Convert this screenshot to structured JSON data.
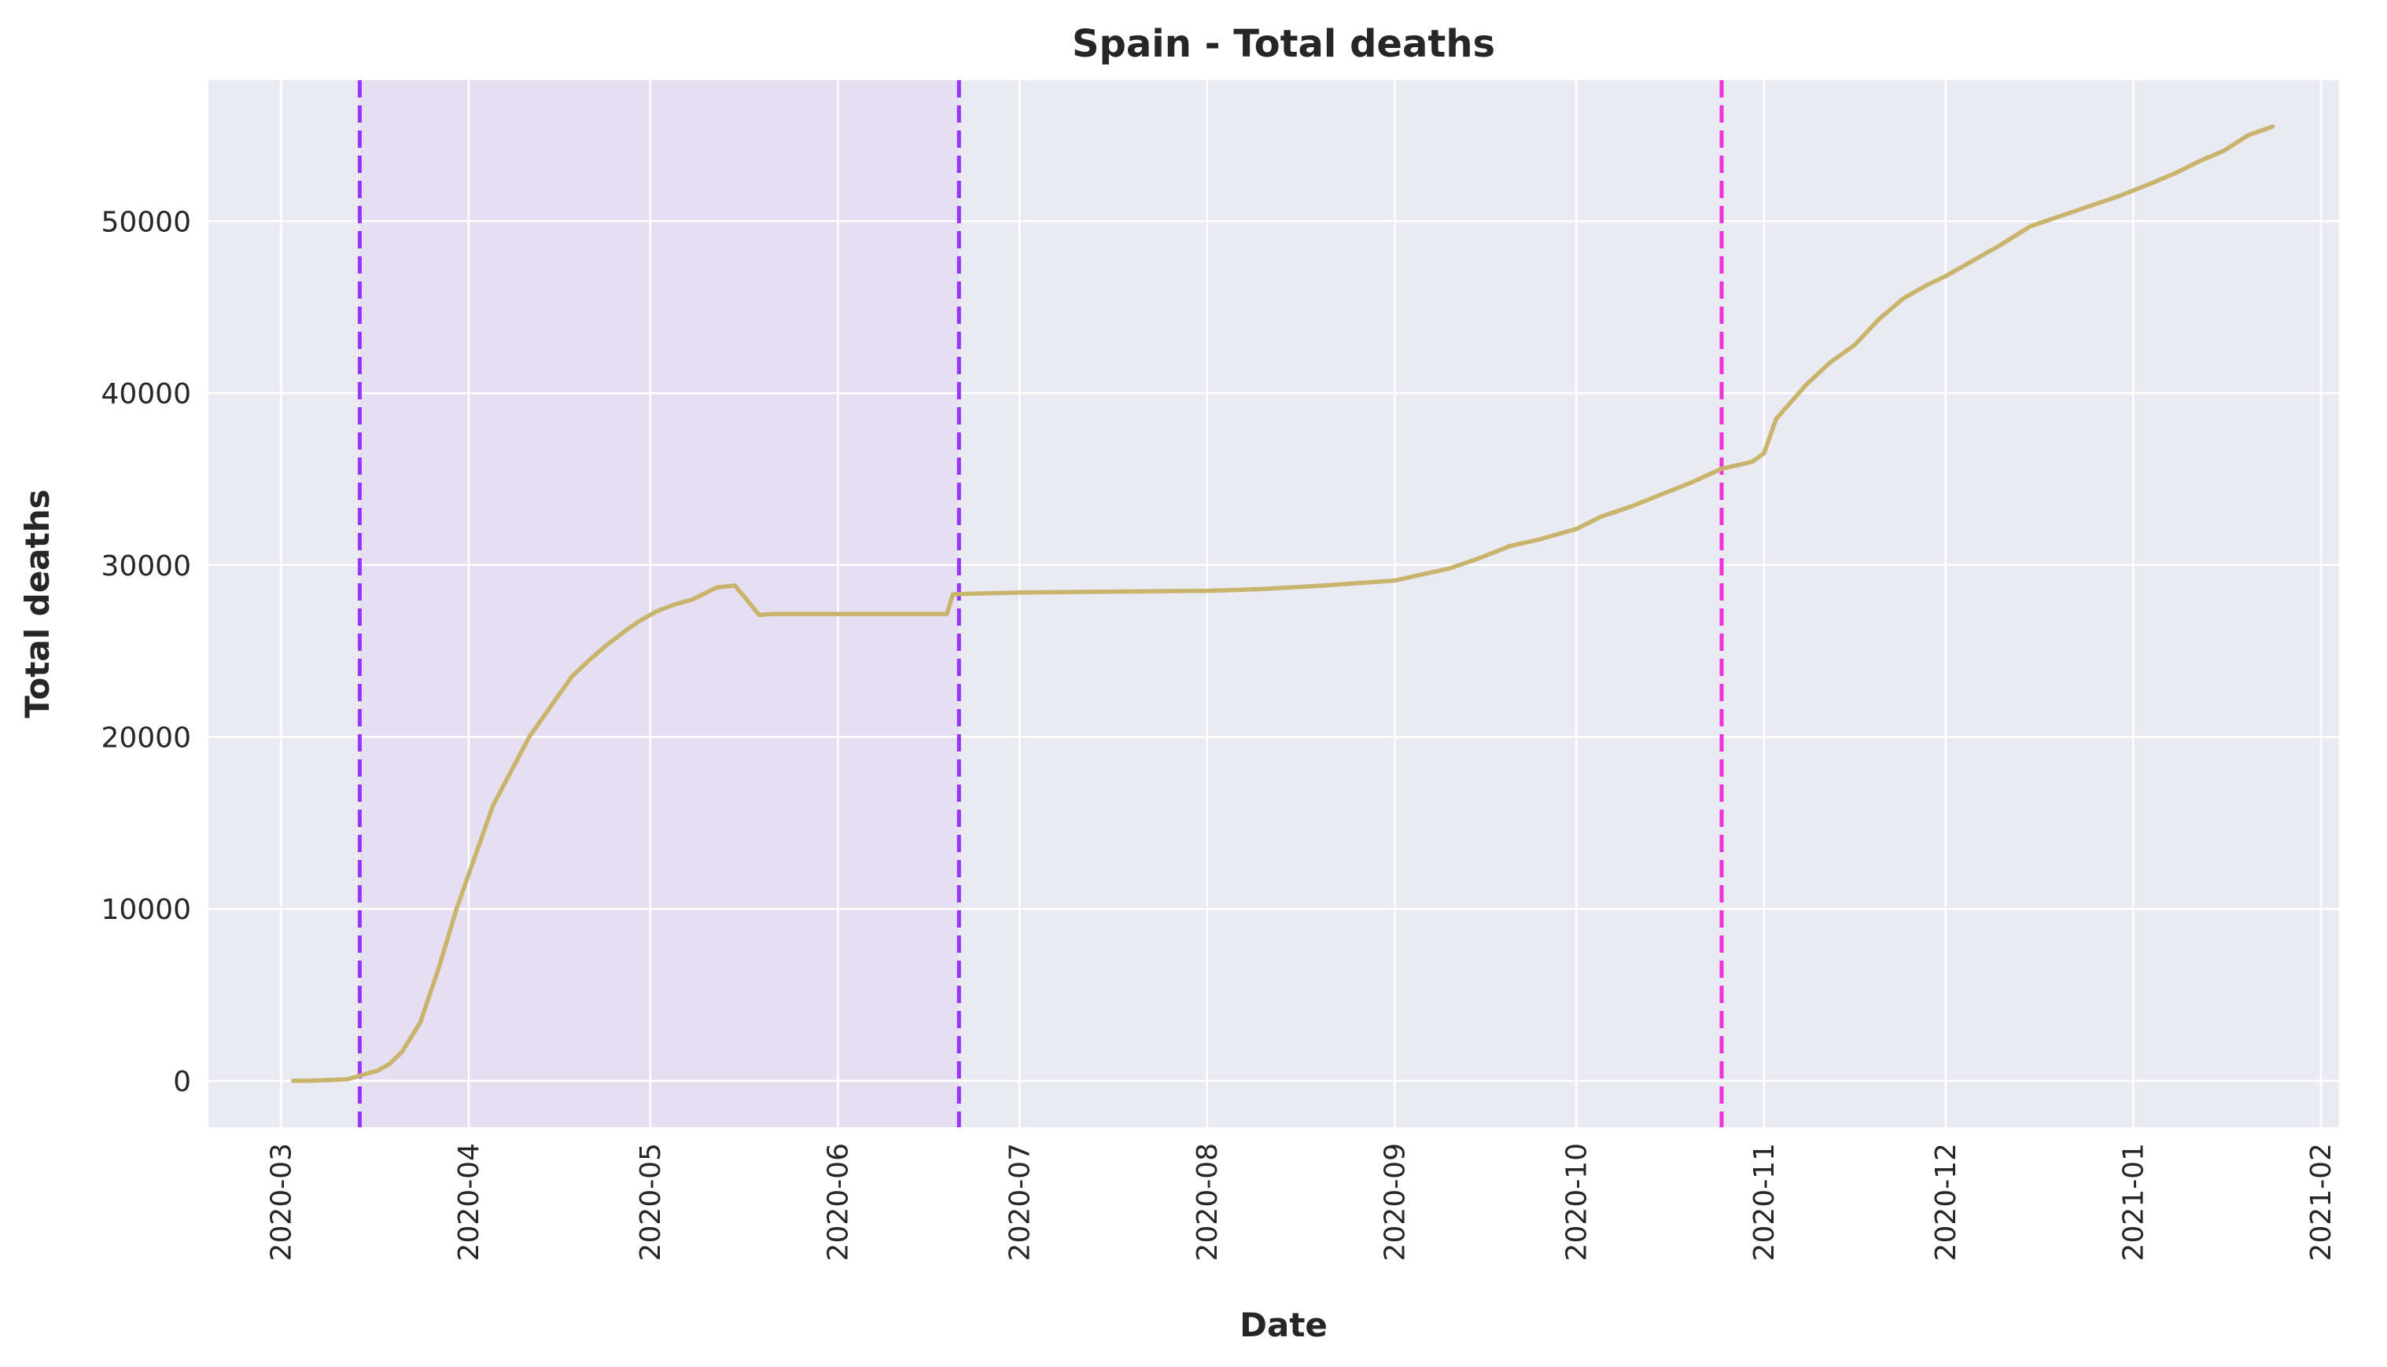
{
  "chart_data": {
    "type": "line",
    "title": "Spain - Total deaths",
    "xlabel": "Date",
    "ylabel": "Total deaths",
    "xlim": [
      "2020-02-18",
      "2021-02-04"
    ],
    "ylim": [
      -2700,
      58200
    ],
    "grid": true,
    "colors": {
      "background": "#eaeaf2",
      "grid": "#ffffff",
      "line": "#c9b46d",
      "shade": "#e5dff1",
      "vline_primary": "#9933ff",
      "vline_secondary": "#ee33dd",
      "text": "#262626"
    },
    "x_ticks": [
      "2020-03",
      "2020-04",
      "2020-05",
      "2020-06",
      "2020-07",
      "2020-08",
      "2020-09",
      "2020-10",
      "2020-11",
      "2020-12",
      "2021-01",
      "2021-02"
    ],
    "x_tick_dates": [
      "2020-03-01",
      "2020-04-01",
      "2020-05-01",
      "2020-06-01",
      "2020-07-01",
      "2020-08-01",
      "2020-09-01",
      "2020-10-01",
      "2020-11-01",
      "2020-12-01",
      "2021-01-01",
      "2021-02-01"
    ],
    "y_ticks": [
      0,
      10000,
      20000,
      30000,
      40000,
      50000
    ],
    "shaded_region": {
      "from": "2020-03-14",
      "to": "2020-06-21"
    },
    "vertical_lines": [
      {
        "date": "2020-03-14",
        "style": "dashed",
        "color": "#9933ff"
      },
      {
        "date": "2020-06-21",
        "style": "dashed",
        "color": "#9933ff"
      },
      {
        "date": "2020-10-25",
        "style": "dashed",
        "color": "#ee33dd"
      }
    ],
    "series": [
      {
        "x": [
          "2020-03-03",
          "2020-03-06",
          "2020-03-09",
          "2020-03-12",
          "2020-03-14",
          "2020-03-17",
          "2020-03-19",
          "2020-03-21",
          "2020-03-24",
          "2020-03-27",
          "2020-03-30",
          "2020-04-02",
          "2020-04-05",
          "2020-04-08",
          "2020-04-11",
          "2020-04-14",
          "2020-04-17",
          "2020-04-18",
          "2020-04-21",
          "2020-04-24",
          "2020-04-27",
          "2020-04-29",
          "2020-04-30",
          "2020-05-02",
          "2020-05-05",
          "2020-05-08",
          "2020-05-12",
          "2020-05-15",
          "2020-05-19",
          "2020-05-21",
          "2020-05-22",
          "2020-05-24",
          "2020-05-25",
          "2020-05-26",
          "2020-06-01",
          "2020-06-10",
          "2020-06-19",
          "2020-06-20",
          "2020-06-25",
          "2020-07-01",
          "2020-07-15",
          "2020-08-01",
          "2020-08-10",
          "2020-08-20",
          "2020-09-01",
          "2020-09-10",
          "2020-09-15",
          "2020-09-20",
          "2020-09-25",
          "2020-10-01",
          "2020-10-05",
          "2020-10-10",
          "2020-10-15",
          "2020-10-20",
          "2020-10-25",
          "2020-10-30",
          "2020-11-01",
          "2020-11-03",
          "2020-11-05",
          "2020-11-08",
          "2020-11-12",
          "2020-11-16",
          "2020-11-20",
          "2020-11-24",
          "2020-11-28",
          "2020-12-01",
          "2020-12-05",
          "2020-12-10",
          "2020-12-15",
          "2020-12-20",
          "2020-12-25",
          "2020-12-30",
          "2021-01-04",
          "2021-01-08",
          "2021-01-12",
          "2021-01-16",
          "2021-01-20",
          "2021-01-24"
        ],
        "y": [
          0,
          10,
          50,
          90,
          300,
          600,
          1000,
          1700,
          3400,
          6500,
          10000,
          13000,
          16000,
          18000,
          20000,
          21500,
          23000,
          23500,
          24500,
          25400,
          26200,
          26700,
          26900,
          27300,
          27700,
          28000,
          28700,
          28800,
          27100,
          27150,
          27150,
          27150,
          27150,
          27150,
          27150,
          27150,
          27150,
          28300,
          28350,
          28400,
          28450,
          28500,
          28600,
          28800,
          29100,
          29800,
          30400,
          31100,
          31500,
          32100,
          32800,
          33400,
          34100,
          34800,
          35600,
          36000,
          36500,
          38500,
          39300,
          40500,
          41800,
          42800,
          44300,
          45500,
          46300,
          46800,
          47600,
          48600,
          49700,
          50300,
          50900,
          51500,
          52200,
          52800,
          53500,
          54100,
          55000,
          55500
        ]
      }
    ]
  }
}
